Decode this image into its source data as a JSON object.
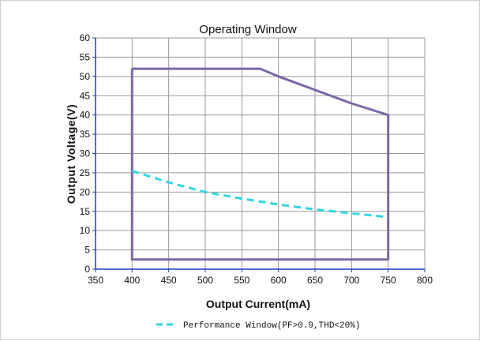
{
  "chart_data": {
    "type": "line",
    "title": "Operating Window",
    "xlabel": "Output Current(mA)",
    "ylabel": "Output Voltage(V)",
    "xlim": [
      350,
      800
    ],
    "ylim": [
      0,
      60
    ],
    "x_ticks": [
      350,
      400,
      450,
      500,
      550,
      600,
      650,
      700,
      750,
      800
    ],
    "y_ticks": [
      0,
      5,
      10,
      15,
      20,
      25,
      30,
      35,
      40,
      45,
      50,
      55,
      60
    ],
    "grid": true,
    "legend_position": "bottom",
    "series": [
      {
        "id": "operating-window",
        "style": "solid",
        "color": "#7b68a6",
        "x": [
          400,
          575,
          600,
          650,
          700,
          750,
          750,
          400,
          400
        ],
        "y": [
          52,
          52,
          50,
          46.5,
          43,
          40,
          2.5,
          2.5,
          52
        ]
      },
      {
        "name": "Performance Window(PF>0.9,THD<20%)",
        "style": "dashed",
        "color": "#33d6e0",
        "x": [
          400,
          450,
          500,
          550,
          600,
          650,
          700,
          750
        ],
        "y": [
          25.5,
          22.5,
          20,
          18.3,
          16.8,
          15.5,
          14.5,
          13.5
        ]
      }
    ]
  }
}
